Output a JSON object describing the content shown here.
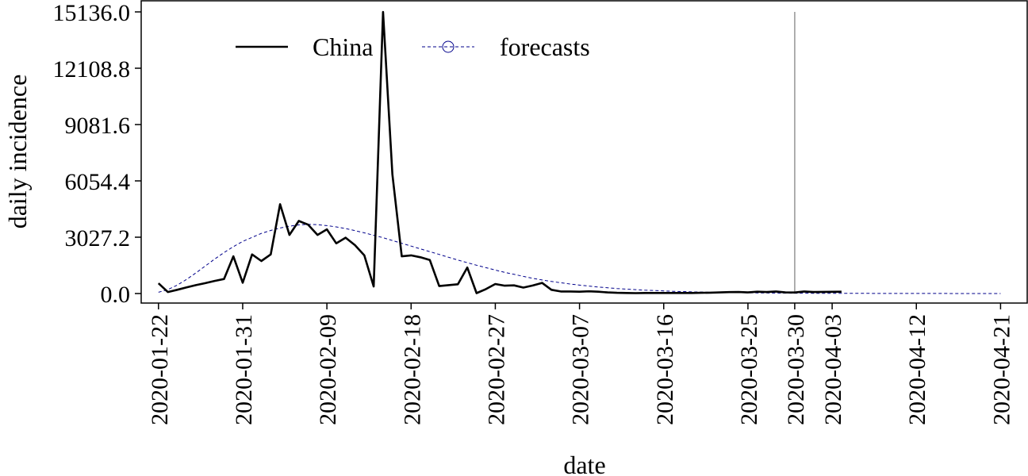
{
  "chart_data": {
    "type": "line",
    "xlabel": "date",
    "ylabel": "daily incidence",
    "ylim": [
      0,
      15136.0
    ],
    "yticks": [
      "0.0",
      "3027.2",
      "6054.4",
      "9081.6",
      "12108.8",
      "15136.0"
    ],
    "ytick_values": [
      0,
      3027.2,
      6054.4,
      9081.6,
      12108.8,
      15136.0
    ],
    "xticks": [
      "2020-01-22",
      "2020-01-31",
      "2020-02-09",
      "2020-02-18",
      "2020-02-27",
      "2020-03-07",
      "2020-03-16",
      "2020-03-25",
      "2020-03-30",
      "2020-04-03",
      "2020-04-12",
      "2020-04-21"
    ],
    "xlim": [
      "2020-01-21",
      "2020-04-23"
    ],
    "vline": "2020-03-30",
    "legend": {
      "placement": "top-left",
      "items": [
        "China",
        "forecasts"
      ]
    },
    "colors": {
      "china": "#000000",
      "forecasts": "#00008b",
      "vline": "#a6a6a6"
    },
    "series": [
      {
        "name": "China",
        "start": "2020-01-22",
        "values": [
          548,
          80,
          200,
          330,
          450,
          560,
          680,
          780,
          2000,
          580,
          2100,
          1750,
          2100,
          4800,
          3150,
          3900,
          3700,
          3150,
          3450,
          2700,
          3000,
          2600,
          2050,
          380,
          15136,
          6400,
          2000,
          2050,
          1950,
          1800,
          400,
          450,
          500,
          1400,
          20,
          240,
          510,
          420,
          440,
          320,
          430,
          570,
          200,
          110,
          110,
          100,
          120,
          100,
          60,
          40,
          30,
          20,
          30,
          30,
          30,
          30,
          30,
          30,
          40,
          45,
          60,
          75,
          80,
          60,
          100,
          80,
          110,
          60,
          55,
          110,
          80,
          90,
          95,
          100
        ]
      },
      {
        "name": "forecasts",
        "start": "2020-01-22",
        "values": [
          70,
          210,
          450,
          760,
          1110,
          1480,
          1850,
          2200,
          2520,
          2800,
          3020,
          3230,
          3390,
          3520,
          3620,
          3690,
          3720,
          3700,
          3650,
          3580,
          3490,
          3380,
          3260,
          3130,
          3000,
          2850,
          2700,
          2550,
          2400,
          2250,
          2100,
          1950,
          1800,
          1660,
          1520,
          1390,
          1260,
          1140,
          1030,
          920,
          820,
          730,
          650,
          580,
          510,
          450,
          400,
          350,
          310,
          270,
          240,
          210,
          180,
          160,
          140,
          120,
          105,
          90,
          80,
          70,
          60,
          52,
          45,
          40,
          35,
          30,
          26,
          22,
          19,
          16,
          14,
          12,
          11,
          10,
          9,
          8,
          7,
          6,
          5,
          5,
          4,
          4,
          3,
          3,
          3,
          2,
          2,
          2,
          2,
          2,
          2
        ]
      }
    ]
  }
}
